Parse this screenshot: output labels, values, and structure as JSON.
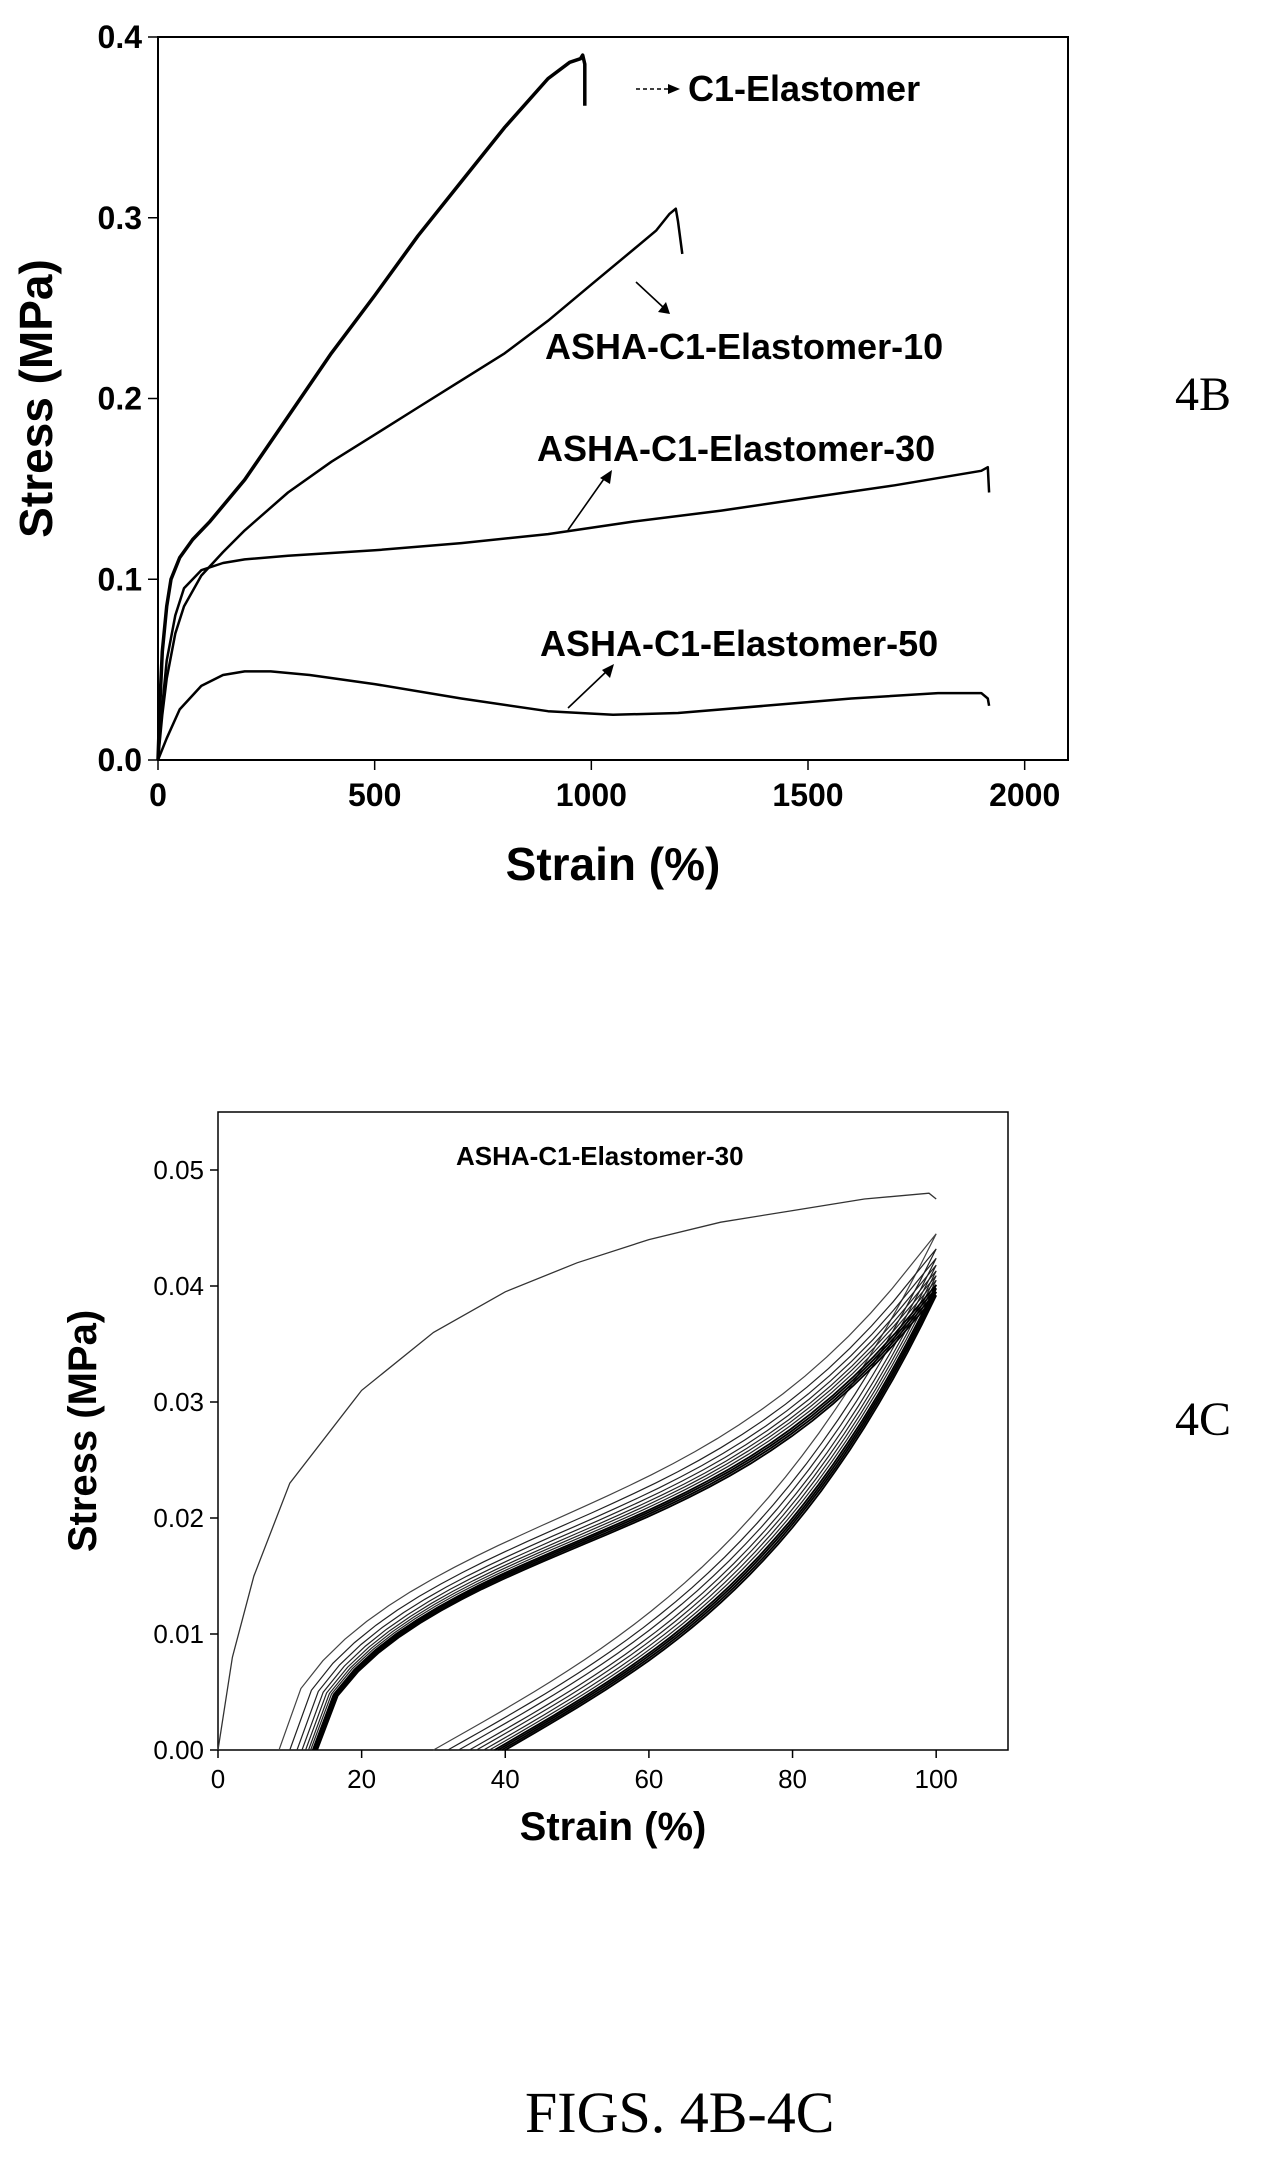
{
  "figure": {
    "caption": "FIGS. 4B-4C",
    "panel_4b_label": "4B",
    "panel_4c_label": "4C"
  },
  "chart_data": [
    {
      "id": "4B",
      "type": "line",
      "xlabel": "Strain (%)",
      "ylabel": "Stress (MPa)",
      "xlim": [
        0,
        2100
      ],
      "ylim": [
        0,
        0.4
      ],
      "xticks": [
        0,
        500,
        1000,
        1500,
        2000
      ],
      "yticks": [
        0.0,
        0.1,
        0.2,
        0.3,
        0.4
      ],
      "xtick_labels": [
        "0",
        "500",
        "1000",
        "1500",
        "2000"
      ],
      "ytick_labels": [
        "0.0",
        "0.1",
        "0.2",
        "0.3",
        "0.4"
      ],
      "grid": false,
      "series": [
        {
          "name": "C1-Elastomer",
          "x": [
            0,
            5,
            10,
            20,
            30,
            50,
            80,
            120,
            200,
            300,
            400,
            500,
            600,
            700,
            800,
            900,
            950,
            975,
            980,
            985,
            985
          ],
          "y": [
            0,
            0.035,
            0.06,
            0.085,
            0.1,
            0.112,
            0.122,
            0.132,
            0.155,
            0.19,
            0.225,
            0.257,
            0.29,
            0.32,
            0.35,
            0.377,
            0.386,
            0.388,
            0.39,
            0.385,
            0.362
          ]
        },
        {
          "name": "ASHA-C1-Elastomer-10",
          "x": [
            0,
            10,
            20,
            40,
            60,
            100,
            150,
            200,
            300,
            400,
            500,
            600,
            700,
            800,
            900,
            1000,
            1100,
            1150,
            1180,
            1195,
            1200,
            1210
          ],
          "y": [
            0,
            0.025,
            0.045,
            0.07,
            0.085,
            0.102,
            0.115,
            0.127,
            0.148,
            0.165,
            0.18,
            0.195,
            0.21,
            0.225,
            0.243,
            0.263,
            0.283,
            0.293,
            0.302,
            0.305,
            0.298,
            0.28
          ]
        },
        {
          "name": "ASHA-C1-Elastomer-30",
          "x": [
            0,
            10,
            20,
            40,
            60,
            100,
            150,
            200,
            300,
            500,
            700,
            900,
            1100,
            1300,
            1500,
            1700,
            1900,
            1915,
            1918
          ],
          "y": [
            0,
            0.03,
            0.055,
            0.08,
            0.095,
            0.105,
            0.109,
            0.111,
            0.113,
            0.116,
            0.12,
            0.125,
            0.132,
            0.138,
            0.145,
            0.152,
            0.16,
            0.162,
            0.148
          ]
        },
        {
          "name": "ASHA-C1-Elastomer-50",
          "x": [
            0,
            20,
            50,
            100,
            150,
            200,
            260,
            350,
            500,
            700,
            900,
            1050,
            1200,
            1400,
            1600,
            1800,
            1900,
            1915,
            1918
          ],
          "y": [
            0,
            0.012,
            0.028,
            0.041,
            0.047,
            0.049,
            0.049,
            0.047,
            0.042,
            0.034,
            0.027,
            0.025,
            0.026,
            0.03,
            0.034,
            0.037,
            0.037,
            0.034,
            0.03
          ]
        }
      ],
      "annotations": [
        {
          "text": "C1-Elastomer"
        },
        {
          "text": "ASHA-C1-Elastomer-10"
        },
        {
          "text": "ASHA-C1-Elastomer-30"
        },
        {
          "text": "ASHA-C1-Elastomer-50"
        }
      ]
    },
    {
      "id": "4C",
      "type": "line",
      "xlabel": "Strain (%)",
      "ylabel": "Stress (MPa)",
      "xlim": [
        0,
        110
      ],
      "ylim": [
        0,
        0.055
      ],
      "xticks": [
        0,
        20,
        40,
        60,
        80,
        100
      ],
      "yticks": [
        0.0,
        0.01,
        0.02,
        0.03,
        0.04,
        0.05
      ],
      "xtick_labels": [
        "0",
        "20",
        "40",
        "60",
        "80",
        "100"
      ],
      "ytick_labels": [
        "0.00",
        "0.01",
        "0.02",
        "0.03",
        "0.04",
        "0.05"
      ],
      "grid": false,
      "annotation": "ASHA-C1-Elastomer-30",
      "first_cycle": {
        "x": [
          0,
          2,
          5,
          10,
          20,
          30,
          40,
          50,
          60,
          70,
          80,
          90,
          99,
          100
        ],
        "y": [
          0,
          0.008,
          0.015,
          0.023,
          0.031,
          0.036,
          0.0395,
          0.042,
          0.044,
          0.0455,
          0.0465,
          0.0475,
          0.048,
          0.0475
        ]
      },
      "cycles": [
        {
          "peak": 0.0445,
          "load_start": 8.5,
          "unload_end": 30
        },
        {
          "peak": 0.0432,
          "load_start": 10,
          "unload_end": 32
        },
        {
          "peak": 0.0424,
          "load_start": 11,
          "unload_end": 33.5
        },
        {
          "peak": 0.0418,
          "load_start": 11.7,
          "unload_end": 35
        },
        {
          "peak": 0.0413,
          "load_start": 12.2,
          "unload_end": 36
        },
        {
          "peak": 0.0409,
          "load_start": 12.6,
          "unload_end": 37
        },
        {
          "peak": 0.0405,
          "load_start": 12.9,
          "unload_end": 37.8
        },
        {
          "peak": 0.0401,
          "load_start": 13.2,
          "unload_end": 38.5
        },
        {
          "peak": 0.0398,
          "load_start": 13.4,
          "unload_end": 39
        },
        {
          "peak": 0.0395,
          "load_start": 13.6,
          "unload_end": 39.5
        },
        {
          "peak": 0.0392,
          "load_start": 13.8,
          "unload_end": 40
        }
      ]
    }
  ]
}
